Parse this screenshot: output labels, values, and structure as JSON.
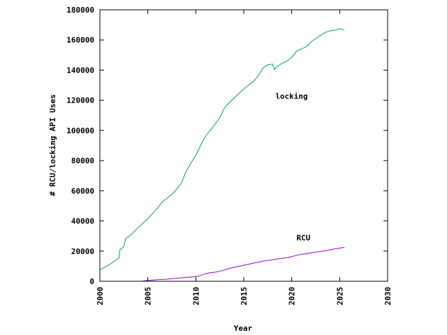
{
  "chart_data": {
    "type": "line",
    "title": "",
    "xlabel": "Year",
    "ylabel": "# RCU/locking API Uses",
    "xlim": [
      2000,
      2030
    ],
    "ylim": [
      0,
      180000
    ],
    "x_ticks": [
      2000,
      2005,
      2010,
      2015,
      2020,
      2025,
      2030
    ],
    "y_ticks": [
      0,
      20000,
      40000,
      60000,
      80000,
      100000,
      120000,
      140000,
      160000,
      180000
    ],
    "grid": false,
    "legend": "none",
    "series": [
      {
        "name": "locking",
        "color": "#009e73",
        "label_at": [
          2018.3,
          121000
        ],
        "points": [
          [
            2000.0,
            7500
          ],
          [
            2001.0,
            11000
          ],
          [
            2002.0,
            15500
          ],
          [
            2002.1,
            21000
          ],
          [
            2002.5,
            23000
          ],
          [
            2002.7,
            28500
          ],
          [
            2003.0,
            29500
          ],
          [
            2003.5,
            32500
          ],
          [
            2004.0,
            35500
          ],
          [
            2004.5,
            38500
          ],
          [
            2005.0,
            41500
          ],
          [
            2005.5,
            45000
          ],
          [
            2006.0,
            48500
          ],
          [
            2006.5,
            52500
          ],
          [
            2007.0,
            55000
          ],
          [
            2007.5,
            57500
          ],
          [
            2008.0,
            61000
          ],
          [
            2008.5,
            65000
          ],
          [
            2009.0,
            73000
          ],
          [
            2009.5,
            78500
          ],
          [
            2010.0,
            83500
          ],
          [
            2010.5,
            90000
          ],
          [
            2011.0,
            96000
          ],
          [
            2011.5,
            100000
          ],
          [
            2012.0,
            104000
          ],
          [
            2012.5,
            108500
          ],
          [
            2013.0,
            115000
          ],
          [
            2013.5,
            118500
          ],
          [
            2014.0,
            121500
          ],
          [
            2014.5,
            124500
          ],
          [
            2015.0,
            127500
          ],
          [
            2015.5,
            130000
          ],
          [
            2016.0,
            132500
          ],
          [
            2016.5,
            136000
          ],
          [
            2017.0,
            141500
          ],
          [
            2017.5,
            143500
          ],
          [
            2018.0,
            144000
          ],
          [
            2018.2,
            140500
          ],
          [
            2018.5,
            142500
          ],
          [
            2019.0,
            144500
          ],
          [
            2019.5,
            146000
          ],
          [
            2020.0,
            148500
          ],
          [
            2020.5,
            152500
          ],
          [
            2021.0,
            154000
          ],
          [
            2021.5,
            155500
          ],
          [
            2022.0,
            158500
          ],
          [
            2022.5,
            161000
          ],
          [
            2023.0,
            163000
          ],
          [
            2023.5,
            165000
          ],
          [
            2024.0,
            166000
          ],
          [
            2024.5,
            166500
          ],
          [
            2025.0,
            167500
          ],
          [
            2025.5,
            166500
          ]
        ]
      },
      {
        "name": "RCU",
        "color": "#9400d3",
        "label_at": [
          2020.5,
          27000
        ],
        "points": [
          [
            2004.5,
            300
          ],
          [
            2005.0,
            500
          ],
          [
            2006.0,
            1000
          ],
          [
            2007.0,
            1400
          ],
          [
            2008.0,
            2000
          ],
          [
            2009.0,
            2600
          ],
          [
            2010.0,
            3000
          ],
          [
            2010.5,
            3800
          ],
          [
            2011.0,
            5000
          ],
          [
            2011.5,
            5700
          ],
          [
            2012.0,
            6000
          ],
          [
            2012.5,
            6600
          ],
          [
            2013.0,
            7500
          ],
          [
            2013.5,
            8500
          ],
          [
            2014.0,
            9300
          ],
          [
            2014.5,
            9900
          ],
          [
            2015.0,
            10600
          ],
          [
            2015.5,
            11300
          ],
          [
            2016.0,
            12000
          ],
          [
            2016.5,
            12600
          ],
          [
            2017.0,
            13300
          ],
          [
            2017.5,
            13800
          ],
          [
            2018.0,
            14300
          ],
          [
            2018.5,
            14800
          ],
          [
            2019.0,
            15200
          ],
          [
            2019.5,
            15700
          ],
          [
            2020.0,
            16300
          ],
          [
            2020.5,
            17200
          ],
          [
            2021.0,
            17800
          ],
          [
            2021.5,
            18300
          ],
          [
            2022.0,
            18800
          ],
          [
            2022.5,
            19300
          ],
          [
            2023.0,
            19700
          ],
          [
            2023.5,
            20200
          ],
          [
            2024.0,
            20800
          ],
          [
            2024.5,
            21500
          ],
          [
            2025.0,
            22000
          ],
          [
            2025.5,
            22500
          ]
        ]
      }
    ]
  }
}
